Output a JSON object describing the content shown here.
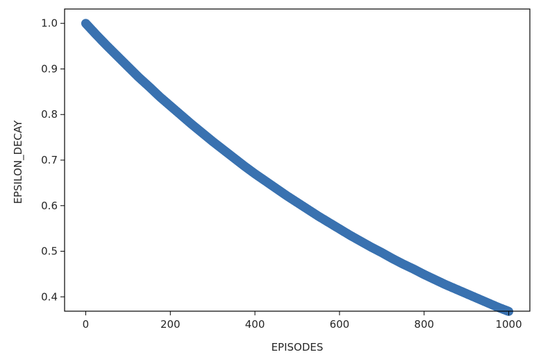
{
  "chart_data": {
    "type": "scatter",
    "title": "",
    "xlabel": "EPISODES",
    "ylabel": "EPSILON_DECAY",
    "xlim": [
      -50,
      1050
    ],
    "ylim": [
      0.3685,
      1.0315
    ],
    "xticks": [
      0,
      200,
      400,
      600,
      800,
      1000
    ],
    "xtick_labels": [
      "0",
      "200",
      "400",
      "600",
      "800",
      "1000"
    ],
    "yticks": [
      0.4,
      0.5,
      0.6,
      0.7,
      0.8,
      0.9,
      1.0
    ],
    "ytick_labels": [
      "0.4",
      "0.5",
      "0.6",
      "0.7",
      "0.8",
      "0.9",
      "1.0"
    ],
    "grid": false,
    "legend": false,
    "marker_color": "#3a72b0",
    "series": [
      {
        "x": [
          0,
          25,
          50,
          75,
          100,
          125,
          150,
          175,
          200,
          225,
          250,
          275,
          300,
          325,
          350,
          375,
          400,
          425,
          450,
          475,
          500,
          525,
          550,
          575,
          600,
          625,
          650,
          675,
          700,
          725,
          750,
          775,
          800,
          825,
          850,
          875,
          900,
          925,
          950,
          975,
          1000
        ],
        "y": [
          1.0,
          0.975,
          0.951,
          0.928,
          0.905,
          0.882,
          0.861,
          0.839,
          0.819,
          0.799,
          0.779,
          0.76,
          0.741,
          0.723,
          0.705,
          0.687,
          0.67,
          0.654,
          0.638,
          0.622,
          0.607,
          0.592,
          0.577,
          0.563,
          0.549,
          0.535,
          0.522,
          0.509,
          0.497,
          0.484,
          0.472,
          0.461,
          0.449,
          0.438,
          0.427,
          0.417,
          0.407,
          0.397,
          0.387,
          0.377,
          0.368
        ]
      }
    ]
  }
}
